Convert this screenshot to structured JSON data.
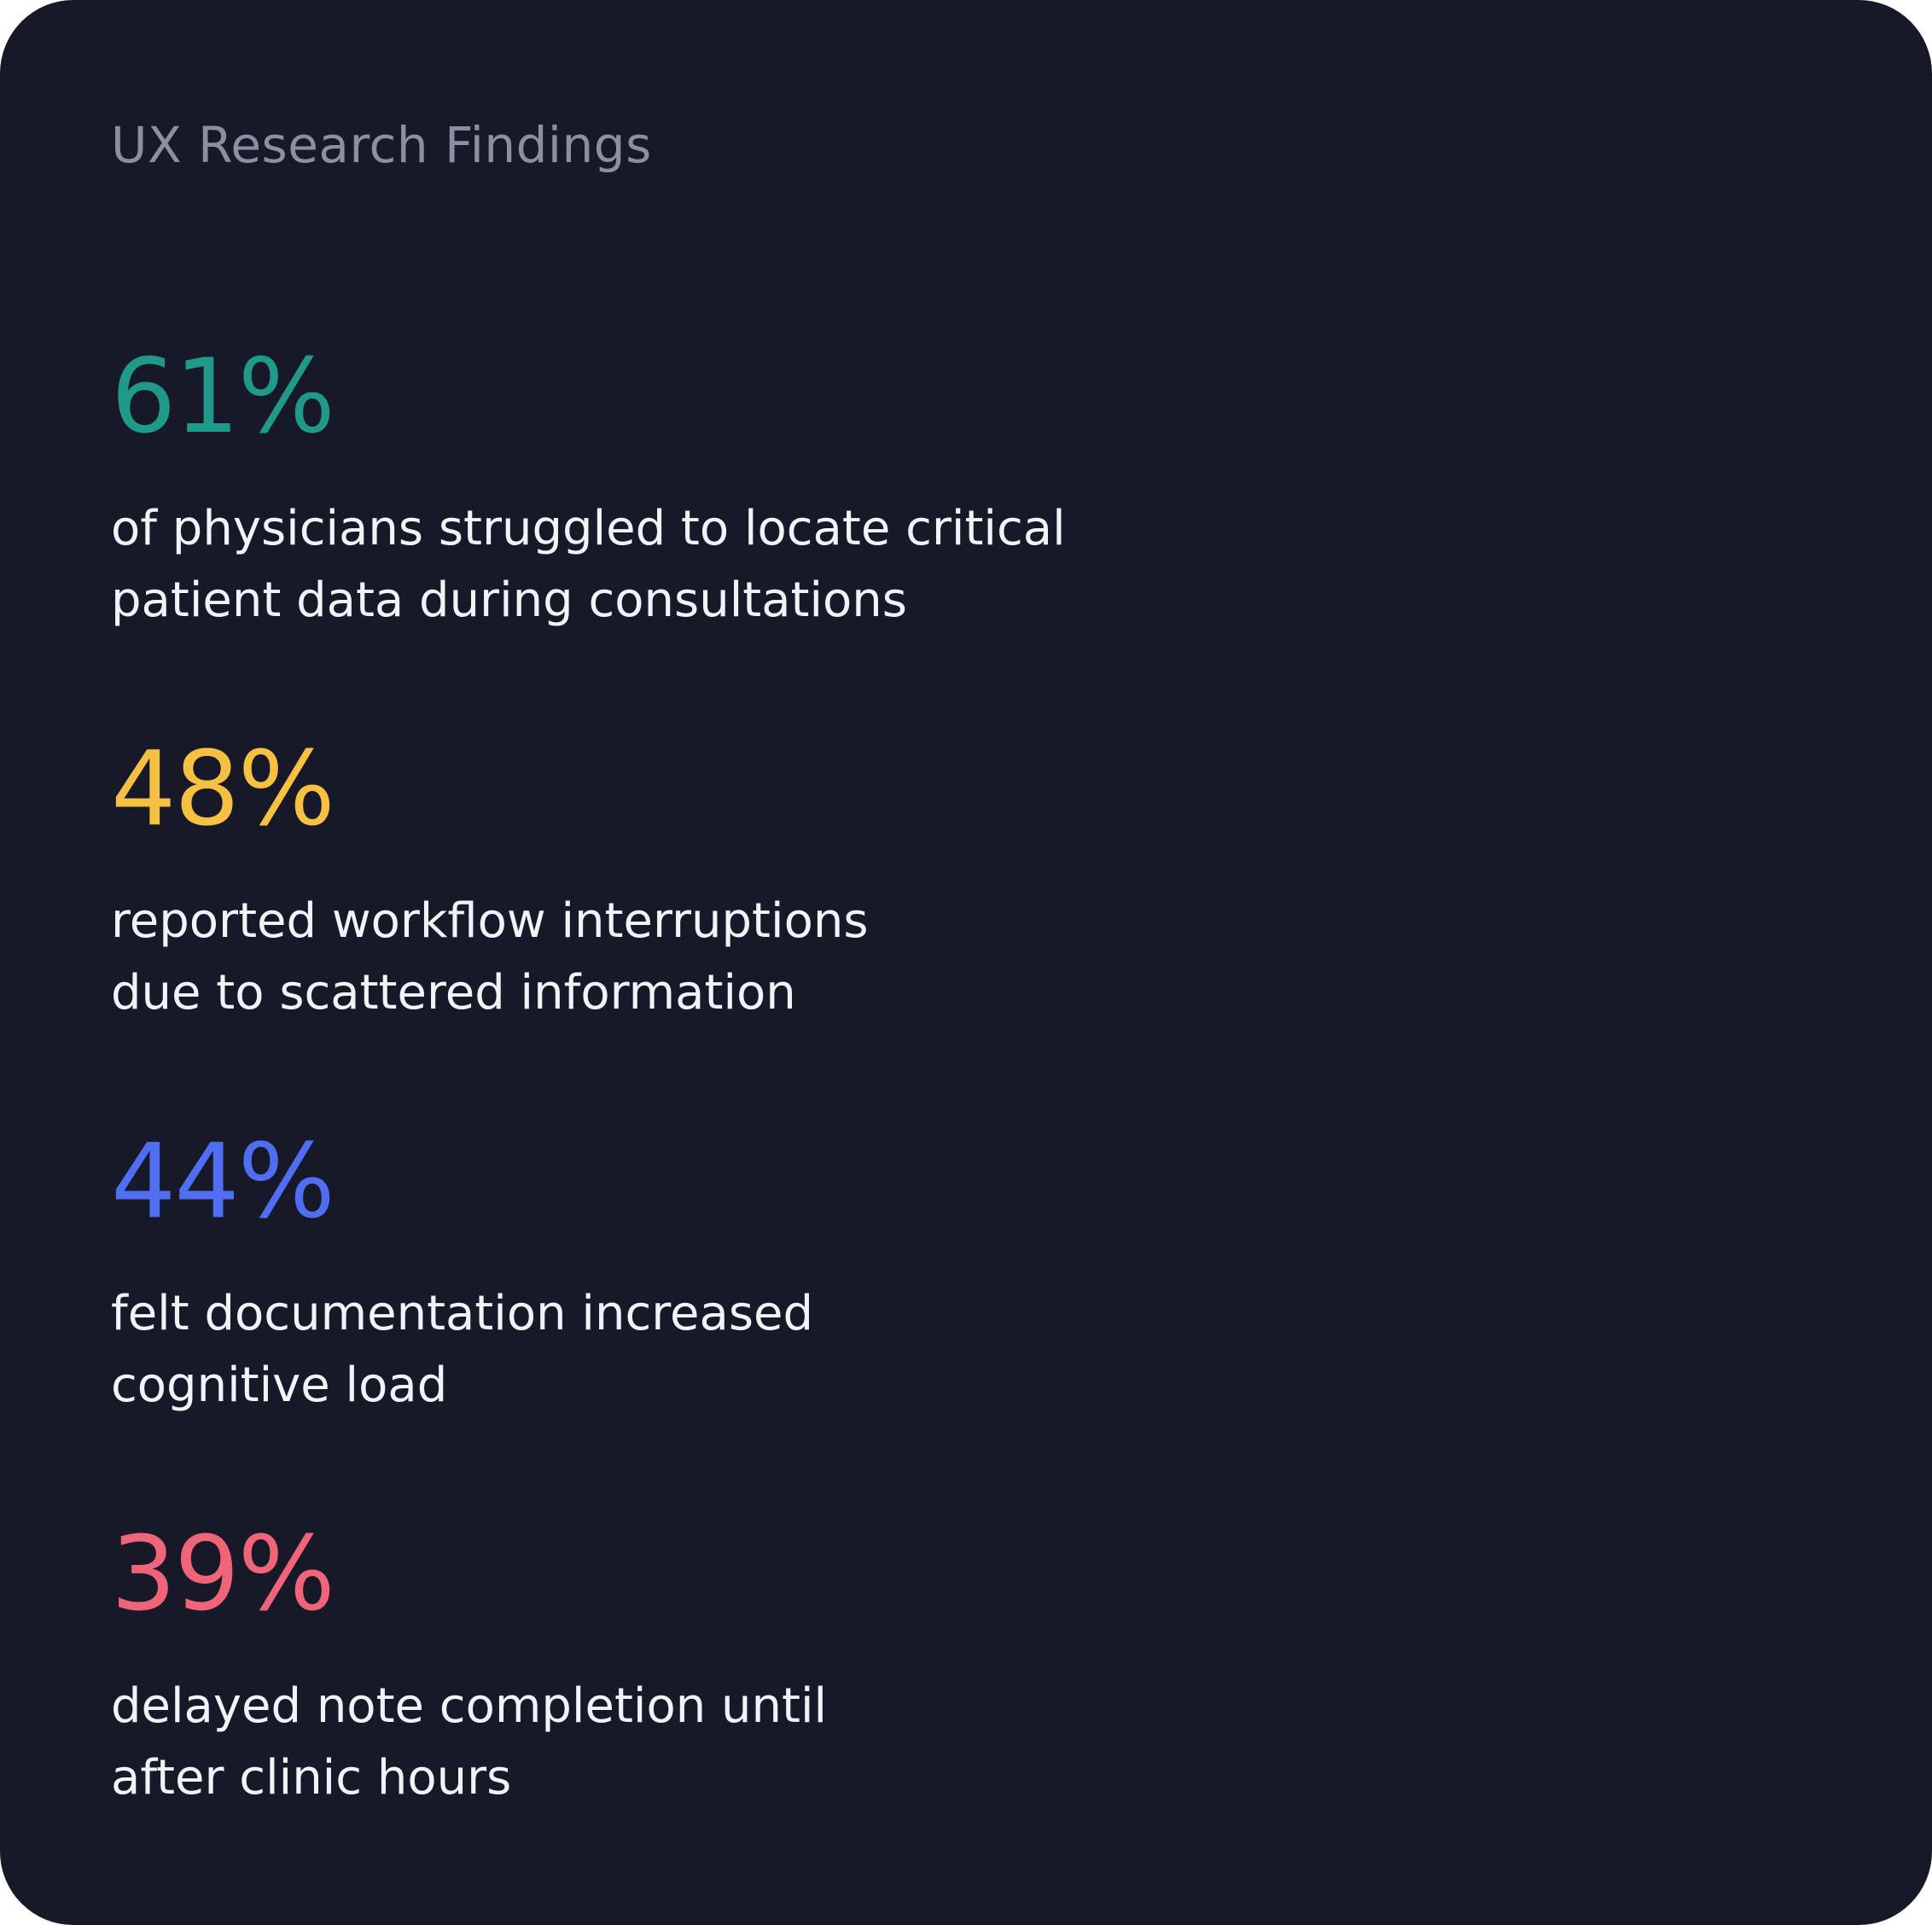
{
  "card": {
    "title": "UX Research Findings"
  },
  "stats": [
    {
      "value": "61%",
      "description": "of physicians struggled to locate critical\npatient data during consultations",
      "color": "#1f9a8a"
    },
    {
      "value": "48%",
      "description": "reported workflow interruptions\ndue to scattered information",
      "color": "#f6c143"
    },
    {
      "value": "44%",
      "description": "felt documentation increased\ncognitive load",
      "color": "#4f6ef2"
    },
    {
      "value": "39%",
      "description": "delayed note completion until\nafter clinic hours",
      "color": "#ef6478"
    }
  ],
  "colors": {
    "background": "#171928",
    "heading": "#8c8fa2",
    "body_text": "#f2f3f7"
  }
}
